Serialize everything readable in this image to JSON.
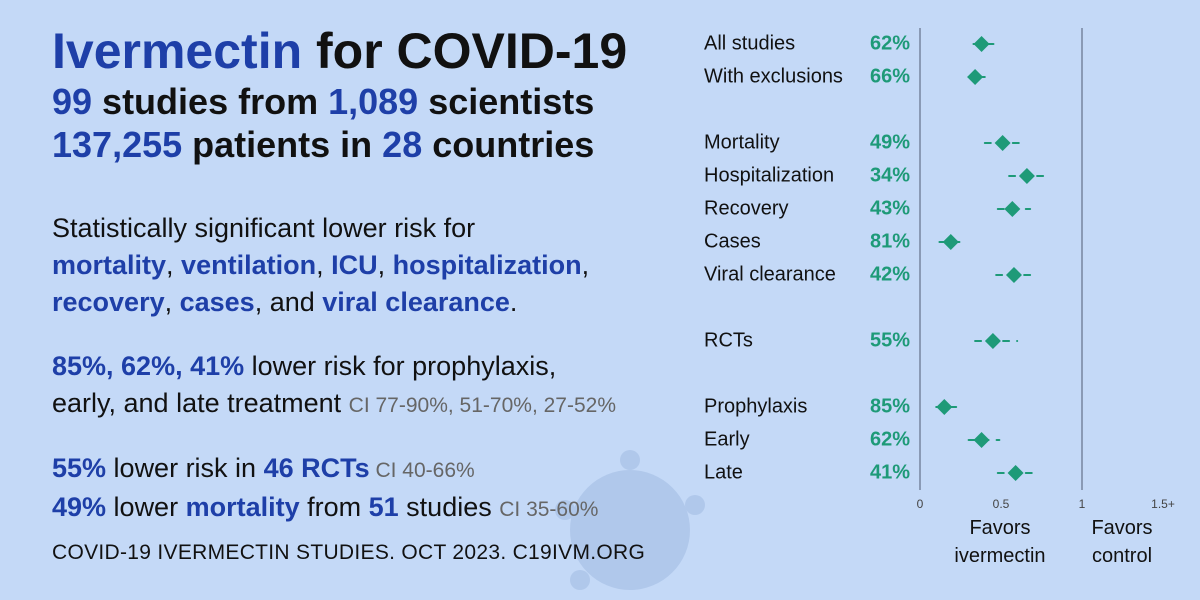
{
  "headline": {
    "title_drug": "Ivermectin",
    "title_rest": " for COVID-19",
    "line2": {
      "n1": "99",
      "t1": " studies from ",
      "n2": "1,089",
      "t2": " scientists"
    },
    "line3": {
      "n1": "137,255",
      "t1": " patients in ",
      "n2": "28",
      "t2": " countries"
    }
  },
  "significance": {
    "intro": "Statistically significant lower risk for",
    "outcomes": [
      "mortality",
      "ventilation",
      "ICU",
      "hospitalization",
      "recovery",
      "cases"
    ],
    "last_outcome": "viral clearance",
    "sep": ", ",
    "and_text": ", and ",
    "end": "."
  },
  "treatment_risk": {
    "values": "85%, 62%, 41%",
    "text1": " lower risk for prophylaxis,",
    "text2": "early, and late treatment ",
    "ci": "CI 77-90%, 51-70%, 27-52%"
  },
  "rct_line": {
    "pct": "55%",
    "text": " lower risk in ",
    "n": "46 RCTs",
    "ci": " CI 40-66%"
  },
  "mortality_line": {
    "pct": "49%",
    "text": " lower ",
    "word": "mortality",
    "text2": " from ",
    "n": "51",
    "text3": " studies ",
    "ci": "CI 35-60%"
  },
  "footer": "COVID-19 IVERMECTIN STUDIES. OCT 2023. C19IVM.ORG",
  "chart_data": {
    "type": "scatter",
    "title": "",
    "x_axis": {
      "ticks": [
        "0",
        "0.5",
        "1",
        "1.5+"
      ],
      "range": [
        0,
        1.5
      ],
      "reference_line": 1
    },
    "labels_under_axis": {
      "left": [
        "Favors",
        "ivermectin"
      ],
      "right": [
        "Favors",
        "control"
      ]
    },
    "colors": {
      "marker": "#1e9a78",
      "percent": "#1e9a78",
      "axis": "#8a9ab5"
    },
    "rows": [
      {
        "label": "All studies",
        "percent": "62%",
        "rr": 0.38,
        "ci": [
          0.33,
          0.46
        ],
        "group": 0
      },
      {
        "label": "With exclusions",
        "percent": "66%",
        "rr": 0.34,
        "ci": [
          0.3,
          0.4
        ],
        "group": 0
      },
      {
        "label": "Mortality",
        "percent": "49%",
        "rr": 0.51,
        "ci": [
          0.4,
          0.65
        ],
        "group": 1
      },
      {
        "label": "Hospitalization",
        "percent": "34%",
        "rr": 0.66,
        "ci": [
          0.55,
          0.8
        ],
        "group": 1
      },
      {
        "label": "Recovery",
        "percent": "43%",
        "rr": 0.57,
        "ci": [
          0.48,
          0.68
        ],
        "group": 1
      },
      {
        "label": "Cases",
        "percent": "81%",
        "rr": 0.19,
        "ci": [
          0.12,
          0.29
        ],
        "group": 1
      },
      {
        "label": "Viral clearance",
        "percent": "42%",
        "rr": 0.58,
        "ci": [
          0.47,
          0.72
        ],
        "group": 1
      },
      {
        "label": "RCTs",
        "percent": "55%",
        "rr": 0.45,
        "ci": [
          0.34,
          0.6
        ],
        "group": 2
      },
      {
        "label": "Prophylaxis",
        "percent": "85%",
        "rr": 0.15,
        "ci": [
          0.1,
          0.23
        ],
        "group": 3
      },
      {
        "label": "Early",
        "percent": "62%",
        "rr": 0.38,
        "ci": [
          0.3,
          0.49
        ],
        "group": 3
      },
      {
        "label": "Late",
        "percent": "41%",
        "rr": 0.59,
        "ci": [
          0.48,
          0.73
        ],
        "group": 3
      }
    ]
  }
}
